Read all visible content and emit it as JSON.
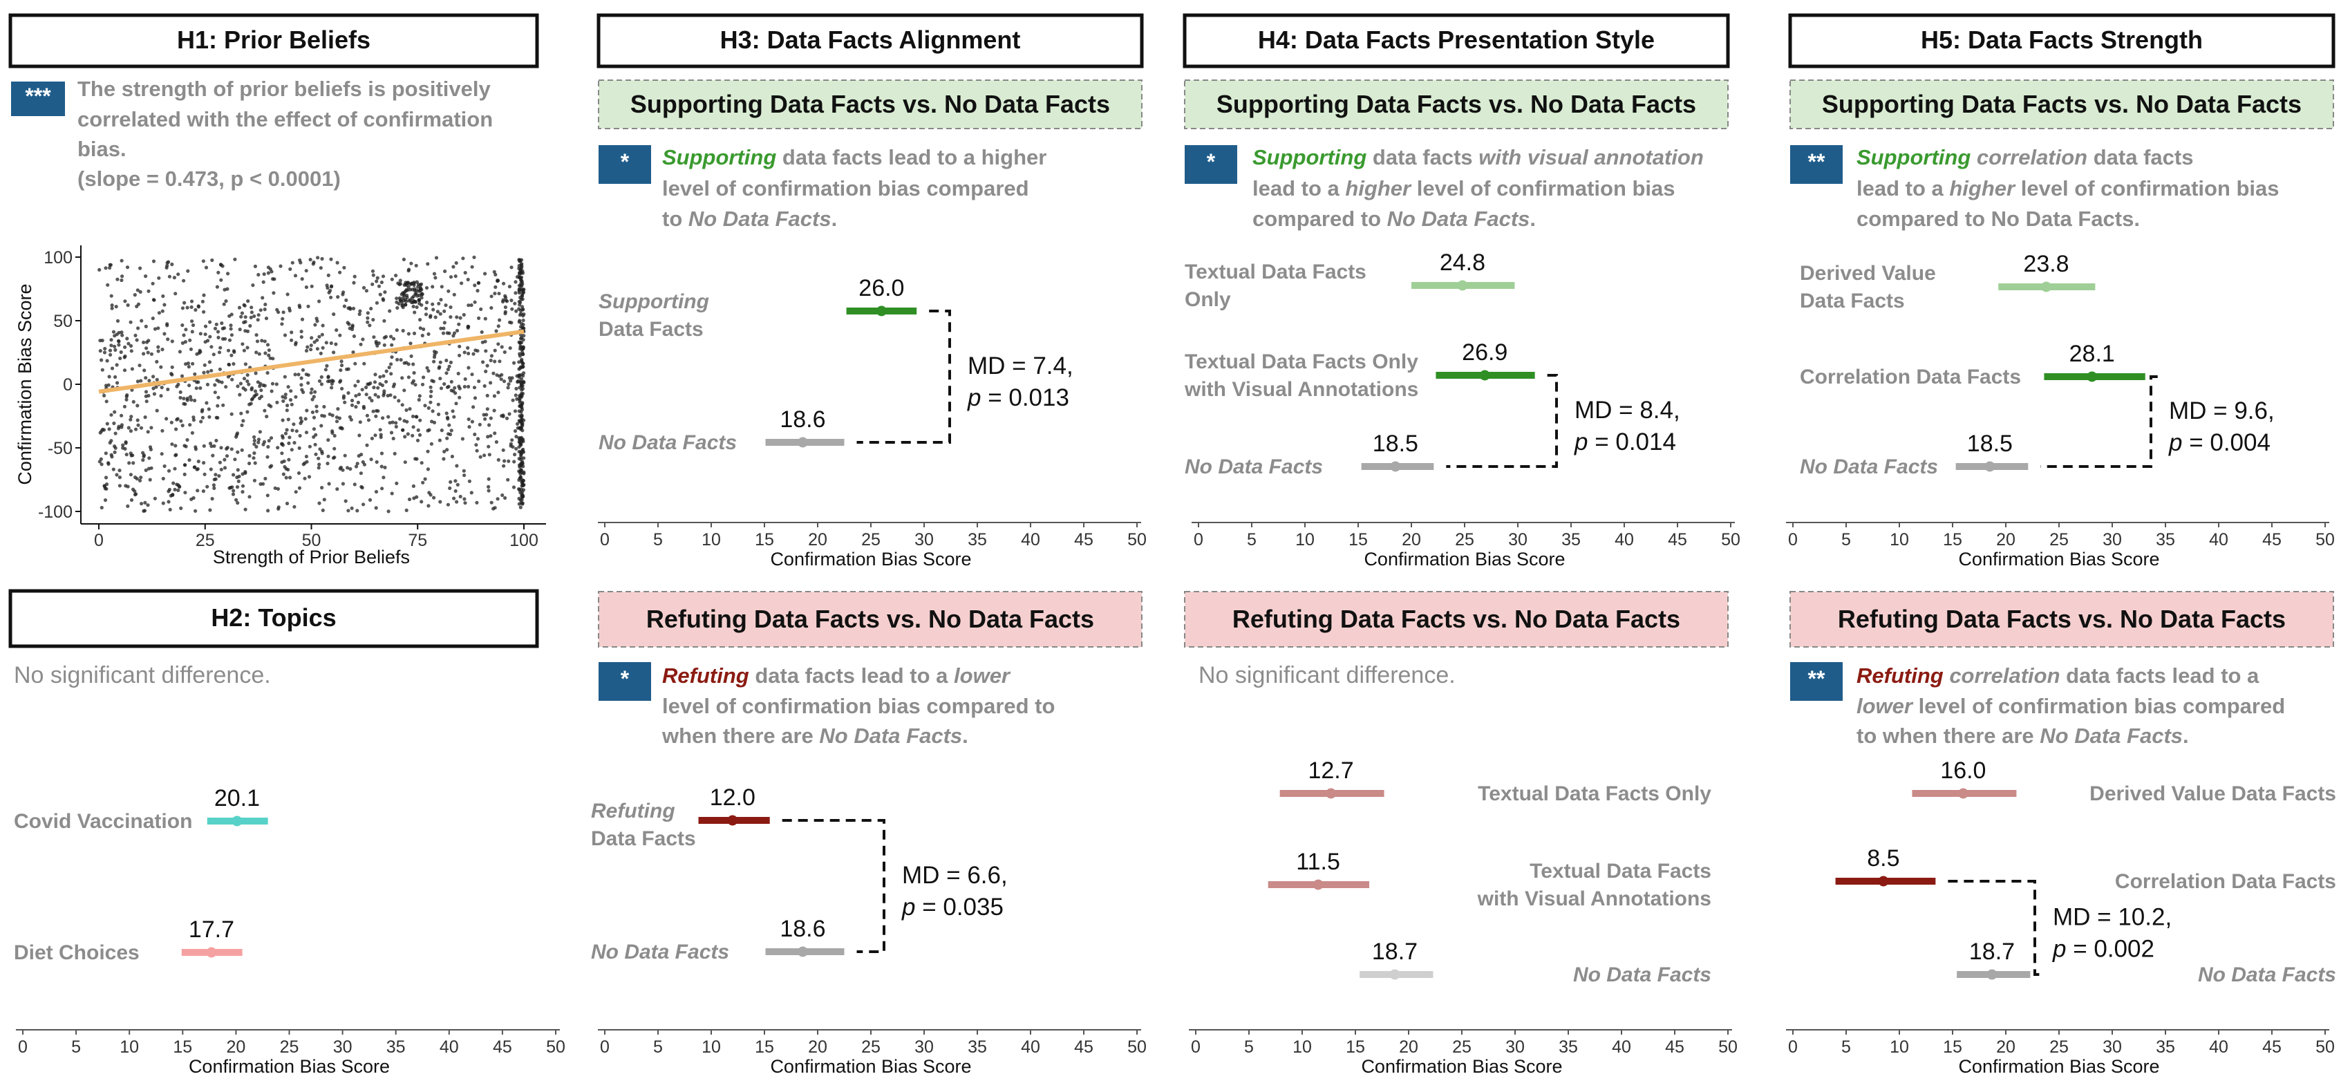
{
  "colors": {
    "badge": "#1f5c8a",
    "support_header": "#d9ecd3",
    "refute_header": "#f5cfcf",
    "support_green": "#3a9a2f",
    "refute_red": "#8b1b12",
    "grey": "#8c8c8c",
    "trend": "#efb567"
  },
  "h1": {
    "title": "H1: Prior Beliefs",
    "badge": "***",
    "desc1": "The strength of prior beliefs is positively",
    "desc2": "correlated with the effect of confirmation",
    "desc3": "bias.",
    "desc4": "(slope = 0.473, p < 0.0001)"
  },
  "h2": {
    "title": "H2: Topics",
    "note": "No significant difference."
  },
  "h3": {
    "title": "H3: Data Facts Alignment",
    "support_header": "Supporting Data Facts vs. No Data Facts",
    "refute_header": "Refuting Data Facts vs. No Data Facts",
    "support_badge": "*",
    "support_kw": "Supporting",
    "support_l1": " data facts lead to a higher",
    "support_l2": "level of confirmation bias compared",
    "support_l3a": "to ",
    "support_l3b": "No Data Facts",
    "support_l3c": ".",
    "refute_badge": "*",
    "refute_kw": "Refuting",
    "refute_l1a": " data facts lead to a ",
    "refute_l1b": "lower",
    "refute_l2": "level of confirmation bias compared to",
    "refute_l3a": "when there are ",
    "refute_l3b": "No Data Facts",
    "refute_l3c": "."
  },
  "h4": {
    "title": "H4: Data Facts Presentation Style",
    "support_header": "Supporting Data Facts vs. No Data Facts",
    "refute_header": "Refuting Data Facts vs. No Data Facts",
    "support_badge": "*",
    "support_kw": "Supporting",
    "support_l1a": " data facts ",
    "support_l1b": "with visual annotation",
    "support_l2a": "lead to a ",
    "support_l2b": "higher",
    "support_l2c": " level of confirmation bias",
    "support_l3a": "compared to ",
    "support_l3b": "No Data Facts",
    "support_l3c": ".",
    "refute_note": "No significant difference."
  },
  "h5": {
    "title": "H5: Data Facts Strength",
    "support_header": "Supporting Data Facts vs. No Data Facts",
    "refute_header": "Refuting Data Facts vs. No Data Facts",
    "support_badge": "**",
    "support_kw": "Supporting",
    "support_l1b": " correlation",
    "support_l1c": " data facts",
    "support_l2a": "lead to a ",
    "support_l2b": "higher",
    "support_l2c": " level of confirmation bias",
    "support_l3": "compared to No Data Facts.",
    "refute_badge": "**",
    "refute_kw": "Refuting",
    "refute_l1b": " correlation",
    "refute_l1c": " data facts lead to a",
    "refute_l2a": "lower",
    "refute_l2b": " level of confirmation bias compared",
    "refute_l3a": "to when there are ",
    "refute_l3b": "No Data Facts",
    "refute_l3c": "."
  },
  "chart_data": [
    {
      "id": "h1_scatter",
      "type": "scatter",
      "xlabel": "Strength of Prior Beliefs",
      "ylabel": "Confirmation Bias Score",
      "xlim": [
        0,
        100
      ],
      "ylim": [
        -100,
        100
      ],
      "xticks": [
        0,
        25,
        50,
        75,
        100
      ],
      "yticks": [
        -100,
        -50,
        0,
        50,
        100
      ],
      "trend": {
        "intercept": -5.8,
        "slope": 0.473
      }
    },
    {
      "id": "h2",
      "type": "dot-interval",
      "xlabel": "Confirmation Bias Score",
      "xlim": [
        0,
        50
      ],
      "xticks": [
        0,
        5,
        10,
        15,
        20,
        25,
        30,
        35,
        40,
        45,
        50
      ],
      "rows": [
        {
          "label": "Covid Vaccination",
          "value": 20.1,
          "low": 17.3,
          "high": 23.0,
          "color": "#58d2c8",
          "labelText": "20.1"
        },
        {
          "label": "Diet Choices",
          "value": 17.7,
          "low": 14.9,
          "high": 20.6,
          "color": "#f5a1a1",
          "labelText": "17.7"
        }
      ]
    },
    {
      "id": "h3s",
      "type": "dot-interval",
      "xlabel": "Confirmation Bias Score",
      "xlim": [
        0,
        50
      ],
      "xticks": [
        0,
        5,
        10,
        15,
        20,
        25,
        30,
        35,
        40,
        45,
        50
      ],
      "rows": [
        {
          "label_kw": "Supporting",
          "label_rest": "Data Facts",
          "value": 26.0,
          "low": 22.7,
          "high": 29.3,
          "color": "#2f8f25",
          "labelText": "26.0"
        },
        {
          "label": "No Data Facts",
          "value": 18.6,
          "low": 15.1,
          "high": 22.5,
          "color": "#a8a8a8",
          "labelText": "18.6"
        }
      ],
      "md": "MD = 7.4,",
      "p": "= 0.013"
    },
    {
      "id": "h3r",
      "type": "dot-interval",
      "xlabel": "Confirmation Bias Score",
      "xlim": [
        0,
        50
      ],
      "xticks": [
        0,
        5,
        10,
        15,
        20,
        25,
        30,
        35,
        40,
        45,
        50
      ],
      "rows": [
        {
          "label_kw": "Refuting",
          "label_rest": "Data Facts",
          "value": 12.0,
          "low": 8.8,
          "high": 15.5,
          "color": "#8b1b12",
          "labelText": "12.0"
        },
        {
          "label": "No Data Facts",
          "value": 18.6,
          "low": 15.1,
          "high": 22.5,
          "color": "#a8a8a8",
          "labelText": "18.6"
        }
      ],
      "md": "MD = 6.6,",
      "p": "= 0.035"
    },
    {
      "id": "h4s",
      "type": "dot-interval",
      "xlabel": "Confirmation Bias Score",
      "xlim": [
        0,
        50
      ],
      "xticks": [
        0,
        5,
        10,
        15,
        20,
        25,
        30,
        35,
        40,
        45,
        50
      ],
      "rows": [
        {
          "label": "Textual Data Facts",
          "label2": "Only",
          "value": 24.8,
          "low": 20.0,
          "high": 29.7,
          "color": "#9fcf96",
          "labelText": "24.8"
        },
        {
          "label": "Textual Data Facts Only",
          "label2": "with Visual Annotations",
          "value": 26.9,
          "low": 22.3,
          "high": 31.6,
          "color": "#2f8f25",
          "labelText": "26.9"
        },
        {
          "label": "No Data Facts",
          "value": 18.5,
          "low": 15.3,
          "high": 22.1,
          "color": "#a8a8a8",
          "labelText": "18.5"
        }
      ],
      "md": "MD = 8.4,",
      "p": "= 0.014"
    },
    {
      "id": "h4r",
      "type": "dot-interval",
      "xlabel": "Confirmation Bias Score",
      "xlim": [
        0,
        50
      ],
      "xticks": [
        0,
        5,
        10,
        15,
        20,
        25,
        30,
        35,
        40,
        45,
        50
      ],
      "rows": [
        {
          "label": "Textual Data Facts Only",
          "value": 12.7,
          "low": 7.9,
          "high": 17.7,
          "color": "#c98a88",
          "labelText": "12.7"
        },
        {
          "label": "Textual Data Facts",
          "label2": "with Visual Annotations",
          "value": 11.5,
          "low": 6.8,
          "high": 16.3,
          "color": "#c98a88",
          "labelText": "11.5"
        },
        {
          "label": "No Data Facts",
          "value": 18.7,
          "low": 15.4,
          "high": 22.3,
          "color": "#cfcfcf",
          "labelText": "18.7"
        }
      ]
    },
    {
      "id": "h5s",
      "type": "dot-interval",
      "xlabel": "Confirmation Bias Score",
      "xlim": [
        0,
        50
      ],
      "xticks": [
        0,
        5,
        10,
        15,
        20,
        25,
        30,
        35,
        40,
        45,
        50
      ],
      "rows": [
        {
          "label": "Derived Value",
          "label2": "Data Facts",
          "value": 23.8,
          "low": 19.3,
          "high": 28.4,
          "color": "#9fcf96",
          "labelText": "23.8"
        },
        {
          "label": "Correlation Data Facts",
          "value": 28.1,
          "low": 23.6,
          "high": 33.1,
          "color": "#2f8f25",
          "labelText": "28.1"
        },
        {
          "label": "No Data Facts",
          "value": 18.5,
          "low": 15.3,
          "high": 22.1,
          "color": "#a8a8a8",
          "labelText": "18.5"
        }
      ],
      "md": "MD = 9.6,",
      "p": "= 0.004"
    },
    {
      "id": "h5r",
      "type": "dot-interval",
      "xlabel": "Confirmation Bias Score",
      "xlim": [
        0,
        50
      ],
      "xticks": [
        0,
        5,
        10,
        15,
        20,
        25,
        30,
        35,
        40,
        45,
        50
      ],
      "rows": [
        {
          "label": "Derived Value Data Facts",
          "value": 16.0,
          "low": 11.2,
          "high": 21.0,
          "color": "#c98a88",
          "labelText": "16.0"
        },
        {
          "label": "Correlation Data Facts",
          "value": 8.5,
          "low": 4.0,
          "high": 13.4,
          "color": "#8b1b12",
          "labelText": "8.5"
        },
        {
          "label": "No Data Facts",
          "value": 18.7,
          "low": 15.4,
          "high": 22.3,
          "color": "#a8a8a8",
          "labelText": "18.7"
        }
      ],
      "md": "MD = 10.2,",
      "p": "= 0.002"
    }
  ]
}
